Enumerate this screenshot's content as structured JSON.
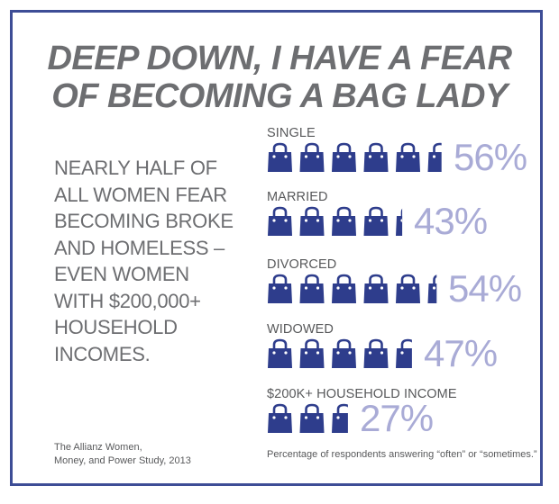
{
  "headline": {
    "line1": "DEEP DOWN, I HAVE A FEAR",
    "line2": "OF BECOMING A BAG LADY"
  },
  "blurb": [
    "NEARLY HALF OF",
    "ALL WOMEN FEAR",
    "BECOMING BROKE",
    "AND HOMELESS –",
    "EVEN WOMEN",
    "WITH $200,000+",
    "HOUSEHOLD",
    "INCOMES."
  ],
  "source": {
    "line1": "The Allianz Women,",
    "line2": "Money, and Power Study, 2013"
  },
  "footnote": "Percentage of respondents answering “often” or “sometimes.”",
  "colors": {
    "bag": "#2e3d8c",
    "percent": "#a9abd6",
    "frame": "#3d4d96",
    "text": "#6d6e71"
  },
  "chart_data": {
    "type": "bar",
    "icon": "shopping-bag-icon",
    "units_per_icon": 10,
    "categories": [
      "SINGLE",
      "MARRIED",
      "DIVORCED",
      "WIDOWED",
      "$200K+ HOUSEHOLD INCOME"
    ],
    "values": [
      56,
      43,
      54,
      47,
      27
    ],
    "value_labels": [
      "56%",
      "43%",
      "54%",
      "47%",
      "27%"
    ],
    "note": "Percentage of respondents answering “often” or “sometimes.”"
  }
}
